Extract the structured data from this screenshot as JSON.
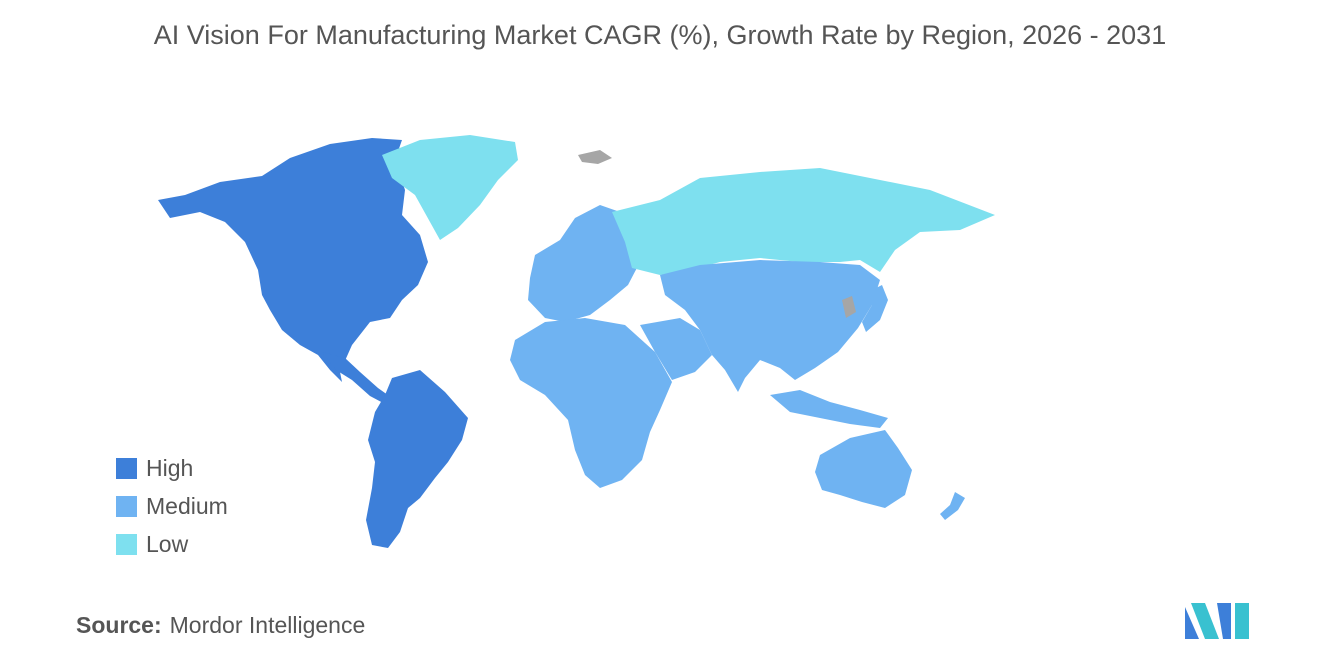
{
  "title": "AI Vision For Manufacturing Market CAGR (%), Growth Rate by Region, 2026 - 2031",
  "legend": {
    "items": [
      {
        "label": "High",
        "color": "#3d7fd9"
      },
      {
        "label": "Medium",
        "color": "#6fb3f2"
      },
      {
        "label": "Low",
        "color": "#7ee0ef"
      }
    ],
    "no_data_color": "#a6a6a6"
  },
  "regions": {
    "north_america": "High",
    "south_america": "High",
    "europe": "Medium",
    "africa": "Medium",
    "middle_east": "Medium",
    "asia": "Medium",
    "australia": "Medium",
    "greenland": "Low",
    "russia": "Low"
  },
  "source": {
    "label": "Source:",
    "value": "Mordor Intelligence"
  },
  "logo": {
    "icon": "mordor-intelligence-logo-icon",
    "colors": [
      "#3d7fd9",
      "#39c1d0"
    ]
  }
}
